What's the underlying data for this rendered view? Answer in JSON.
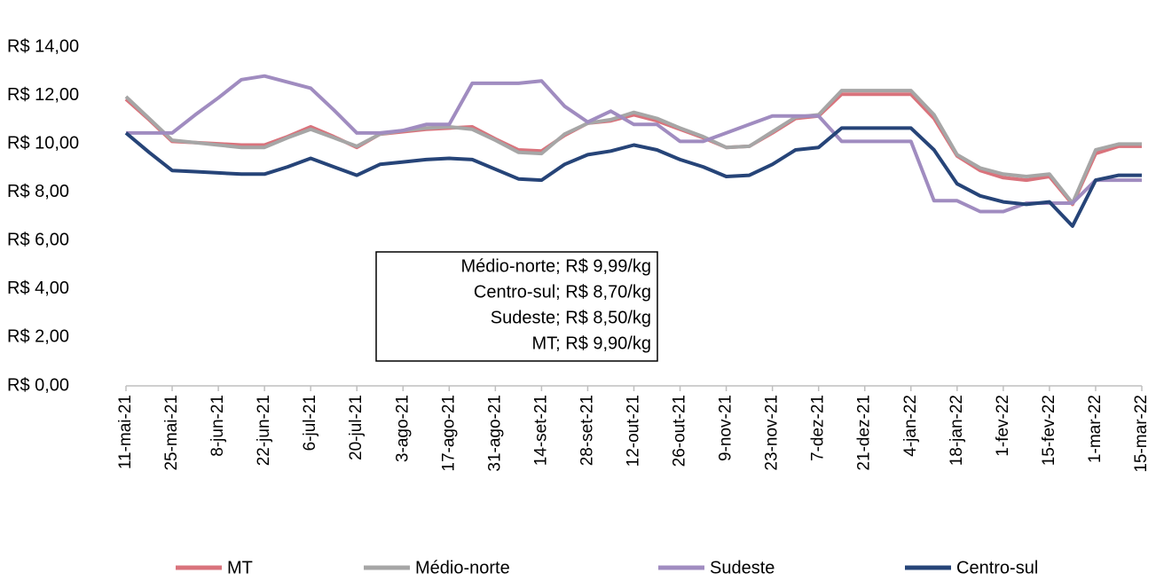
{
  "chart_data": {
    "type": "line",
    "categories": [
      "11-mai-21",
      null,
      "25-mai-21",
      null,
      "8-jun-21",
      null,
      "22-jun-21",
      null,
      "6-jul-21",
      null,
      "20-jul-21",
      null,
      "3-ago-21",
      null,
      "17-ago-21",
      null,
      "31-ago-21",
      null,
      "14-set-21",
      null,
      "28-set-21",
      null,
      "12-out-21",
      null,
      "26-out-21",
      null,
      "9-nov-21",
      null,
      "23-nov-21",
      null,
      "7-dez-21",
      null,
      "21-dez-21",
      null,
      "4-jan-22",
      null,
      "18-jan-22",
      null,
      "1-fev-22",
      null,
      "15-fev-22",
      null,
      "1-mar-22",
      null,
      "15-mar-22"
    ],
    "series": [
      {
        "name": "MT",
        "color": "#d9737c",
        "values": [
          11.85,
          11.0,
          10.1,
          10.05,
          10.0,
          9.95,
          9.95,
          10.3,
          10.7,
          10.3,
          9.85,
          10.4,
          10.5,
          10.6,
          10.65,
          10.7,
          10.2,
          9.75,
          9.7,
          10.35,
          10.85,
          10.95,
          11.2,
          10.95,
          10.6,
          10.25,
          9.85,
          9.9,
          10.45,
          11.05,
          11.15,
          12.05,
          12.05,
          12.05,
          12.05,
          11.05,
          9.5,
          8.9,
          8.6,
          8.5,
          8.65,
          7.5,
          9.6,
          9.9,
          9.9
        ]
      },
      {
        "name": "Médio-norte",
        "color": "#a6a6a6",
        "values": [
          11.95,
          11.05,
          10.15,
          10.05,
          9.95,
          9.85,
          9.85,
          10.25,
          10.6,
          10.25,
          9.9,
          10.4,
          10.55,
          10.65,
          10.7,
          10.6,
          10.15,
          9.65,
          9.6,
          10.4,
          10.85,
          11.0,
          11.3,
          11.05,
          10.65,
          10.3,
          9.85,
          9.9,
          10.5,
          11.1,
          11.2,
          12.2,
          12.2,
          12.2,
          12.2,
          11.2,
          9.55,
          9.0,
          8.75,
          8.65,
          8.75,
          7.55,
          9.75,
          9.99,
          9.99
        ]
      },
      {
        "name": "Sudeste",
        "color": "#a08cc0",
        "values": [
          10.45,
          10.45,
          10.45,
          11.2,
          11.9,
          12.65,
          12.8,
          12.55,
          12.3,
          11.4,
          10.45,
          10.45,
          10.55,
          10.8,
          10.8,
          12.5,
          12.5,
          12.5,
          12.6,
          11.55,
          10.9,
          11.35,
          10.8,
          10.8,
          10.1,
          10.1,
          10.45,
          10.8,
          11.15,
          11.15,
          11.15,
          10.1,
          10.1,
          10.1,
          10.1,
          7.65,
          7.65,
          7.2,
          7.2,
          7.55,
          7.55,
          7.55,
          8.5,
          8.5,
          8.5
        ]
      },
      {
        "name": "Centro-sul",
        "color": "#264478",
        "values": [
          10.45,
          9.65,
          8.9,
          8.85,
          8.8,
          8.75,
          8.75,
          9.05,
          9.4,
          9.05,
          8.7,
          9.15,
          9.25,
          9.35,
          9.4,
          9.35,
          8.95,
          8.55,
          8.5,
          9.15,
          9.55,
          9.7,
          9.95,
          9.75,
          9.35,
          9.05,
          8.65,
          8.7,
          9.15,
          9.75,
          9.85,
          10.65,
          10.65,
          10.65,
          10.65,
          9.75,
          8.35,
          7.85,
          7.6,
          7.5,
          7.6,
          6.6,
          8.5,
          8.7,
          8.7
        ]
      }
    ],
    "ylim": [
      0,
      14
    ],
    "yticks": [
      {
        "value": 0,
        "label": "R$ 0,00"
      },
      {
        "value": 2,
        "label": "R$ 2,00"
      },
      {
        "value": 4,
        "label": "R$ 4,00"
      },
      {
        "value": 6,
        "label": "R$ 6,00"
      },
      {
        "value": 8,
        "label": "R$ 8,00"
      },
      {
        "value": 10,
        "label": "R$ 10,00"
      },
      {
        "value": 12,
        "label": "R$ 12,00"
      },
      {
        "value": 14,
        "label": "R$ 14,00"
      }
    ],
    "grid": false,
    "legend": "bottom",
    "annotations": [
      "Médio-norte; R$ 9,99/kg",
      "Centro-sul; R$ 8,70/kg",
      "Sudeste; R$ 8,50/kg",
      "MT; R$ 9,90/kg"
    ]
  }
}
